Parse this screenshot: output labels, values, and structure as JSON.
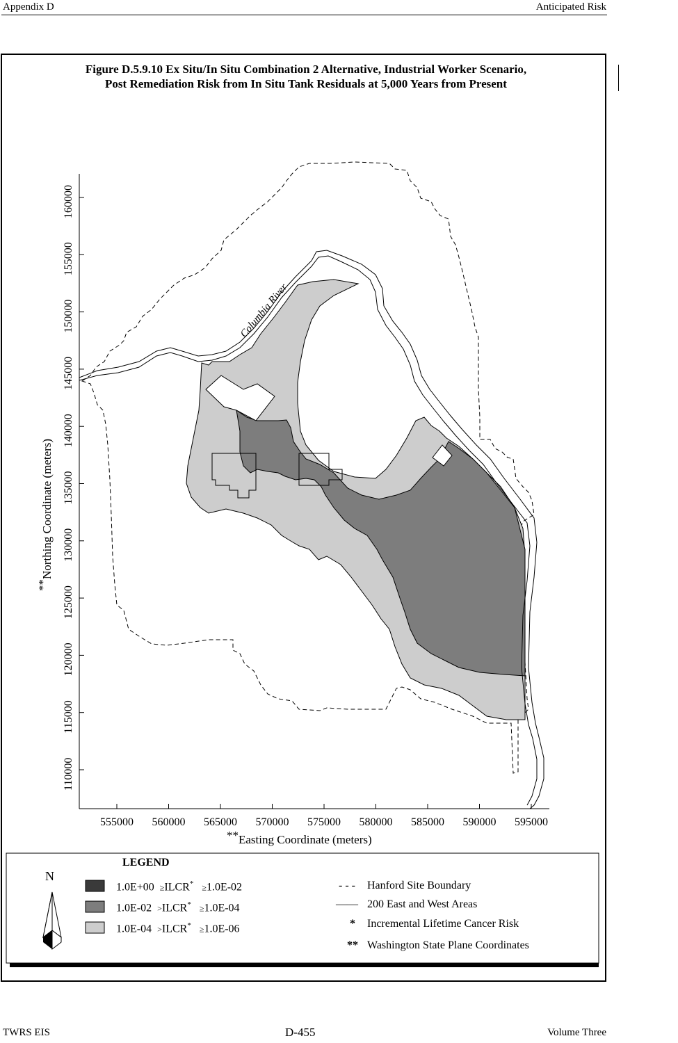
{
  "header": {
    "left": "Appendix D",
    "right": "Anticipated Risk"
  },
  "figure": {
    "title_line1": "Figure D.5.9.10  Ex Situ/In Situ Combination 2 Alternative, Industrial Worker Scenario,",
    "title_line2": "Post Remediation Risk from In Situ Tank Residuals at 5,000 Years from Present"
  },
  "map": {
    "river_label": "Columbia River",
    "x_axis_label": "Easting Coordinate (meters)",
    "x_axis_prefix": "**",
    "y_axis_label": "Northing Coordinate (meters)",
    "y_axis_prefix": "**",
    "x_ticks": [
      "555000",
      "560000",
      "565000",
      "570000",
      "575000",
      "580000",
      "585000",
      "590000",
      "595000"
    ],
    "y_ticks": [
      "160000",
      "155000",
      "150000",
      "145000",
      "140000",
      "135000",
      "130000",
      "125000",
      "120000",
      "115000",
      "110000"
    ],
    "colors": {
      "high": "#3a3a3a",
      "mid": "#7d7d7d",
      "low": "#cdcdcd"
    }
  },
  "legend": {
    "title": "LEGEND",
    "north_symbol": "N",
    "risk_items": [
      {
        "a": "1.0E+00",
        "op1": "≥",
        "b": "ILCR",
        "sup": "*",
        "op2": "≥",
        "c": "1.0E-02"
      },
      {
        "a": "1.0E-02",
        "op1": ">",
        "b": "ILCR",
        "sup": "*",
        "op2": "≥",
        "c": "1.0E-04"
      },
      {
        "a": "1.0E-04",
        "op1": ">",
        "b": "ILCR",
        "sup": "*",
        "op2": "≥",
        "c": "1.0E-06"
      }
    ],
    "line_items": [
      {
        "symbol": "- - -",
        "label": "Hanford Site Boundary"
      },
      {
        "symbol": "——",
        "label": "200 East and West Areas"
      },
      {
        "symbol": "*",
        "label": "Incremental Lifetime Cancer Risk"
      },
      {
        "symbol": "**",
        "label": "Washington State Plane Coordinates"
      }
    ]
  },
  "footer": {
    "left": "TWRS EIS",
    "center": "D-455",
    "right": "Volume Three"
  }
}
